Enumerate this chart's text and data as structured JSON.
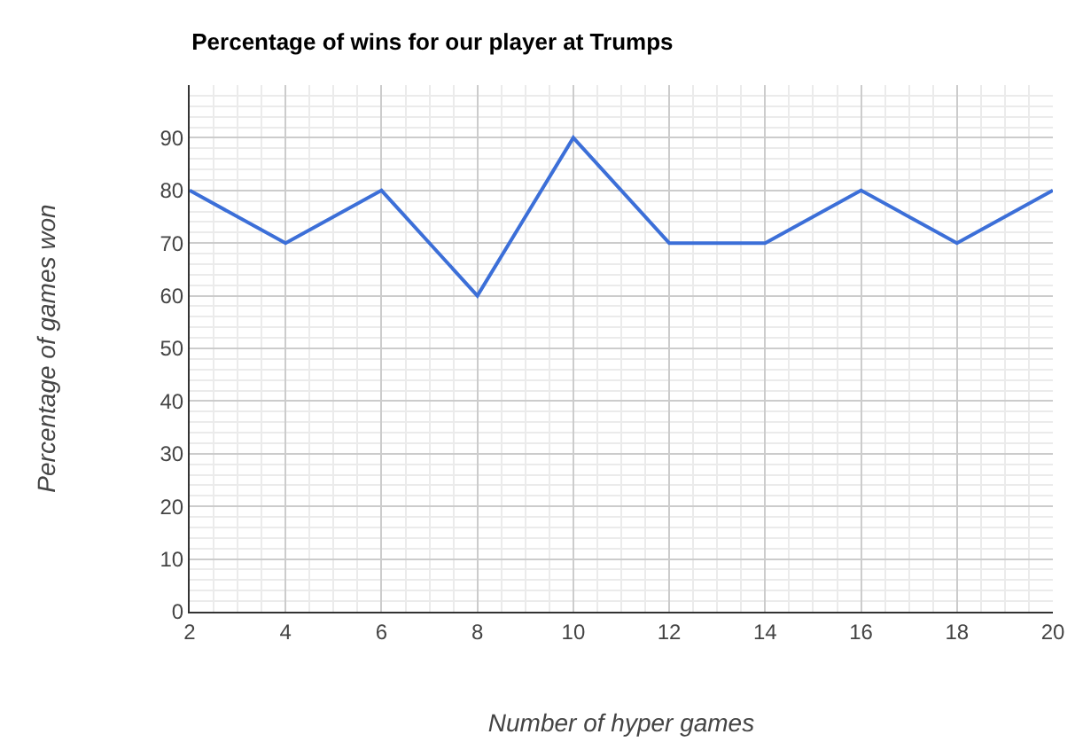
{
  "chart_data": {
    "type": "line",
    "title": "Percentage of wins for our player at Trumps",
    "xlabel": "Number of hyper games",
    "ylabel": "Percentage of games won",
    "x": [
      2,
      4,
      6,
      8,
      10,
      12,
      14,
      16,
      18,
      20
    ],
    "series": [
      {
        "color": "#3c6fd8",
        "values": [
          80,
          70,
          80,
          60,
          90,
          70,
          70,
          80,
          70,
          80
        ]
      }
    ],
    "xlim": [
      2,
      20
    ],
    "xticks": [
      2,
      4,
      6,
      8,
      10,
      12,
      14,
      16,
      18,
      20
    ],
    "ylim": [
      0,
      100
    ],
    "yticks": [
      0,
      10,
      20,
      30,
      40,
      50,
      60,
      70,
      80,
      90
    ],
    "grid": true,
    "marker": "none",
    "line_style": "solid"
  }
}
